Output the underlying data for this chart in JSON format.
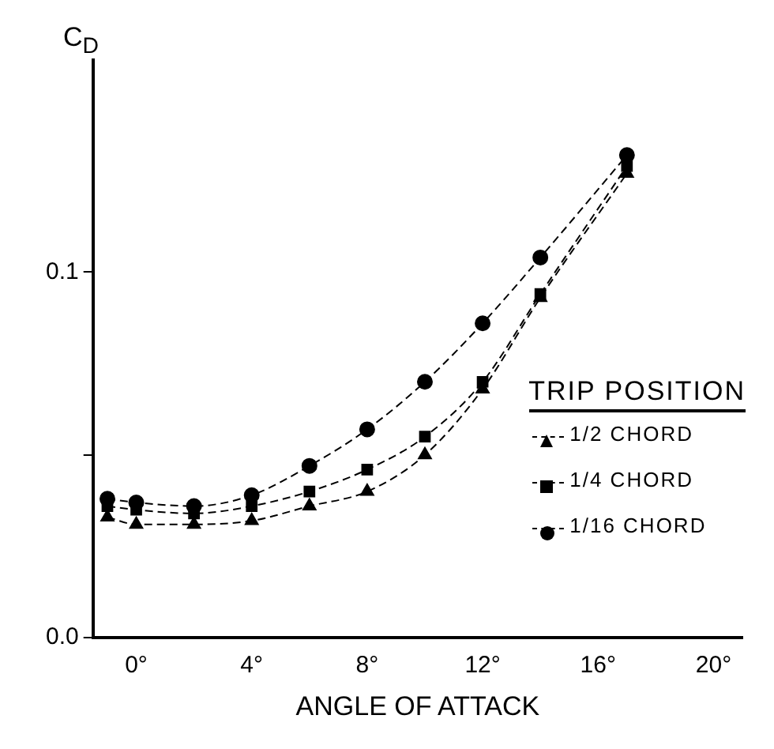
{
  "chart_data": {
    "type": "line",
    "xlabel": "ANGLE OF ATTACK",
    "ylabel": "C$_{D}$",
    "legend_title": "TRIP POSITION",
    "x": [
      -1,
      0,
      2,
      4,
      6,
      8,
      10,
      12,
      14,
      17
    ],
    "series": [
      {
        "name": "1/2 CHORD",
        "color": "#000000",
        "marker": "triangle",
        "values": [
          0.033,
          0.031,
          0.031,
          0.032,
          0.036,
          0.04,
          0.05,
          0.068,
          0.093,
          0.127
        ]
      },
      {
        "name": "1/4 CHORD",
        "color": "#000000",
        "marker": "square",
        "values": [
          0.036,
          0.035,
          0.034,
          0.036,
          0.04,
          0.046,
          0.055,
          0.07,
          0.094,
          0.129
        ]
      },
      {
        "name": "1/16 CHORD",
        "color": "#000000",
        "marker": "circle",
        "values": [
          0.038,
          0.037,
          0.036,
          0.039,
          0.047,
          0.057,
          0.07,
          0.086,
          0.104,
          0.132
        ]
      }
    ],
    "xlim": [
      -1.5,
      21
    ],
    "xticks": [
      {
        "value": 0,
        "label": "0°"
      },
      {
        "value": 4,
        "label": "4°"
      },
      {
        "value": 8,
        "label": "8°"
      },
      {
        "value": 12,
        "label": "12°"
      },
      {
        "value": 16,
        "label": "16°"
      },
      {
        "value": 20,
        "label": "20°"
      }
    ],
    "ylim": [
      0,
      0.158
    ],
    "yticks": [
      {
        "value": 0,
        "label": "0.0"
      },
      {
        "value": 0.05,
        "label": null
      },
      {
        "value": 0.1,
        "label": "0.1"
      }
    ],
    "grid": false,
    "legend": "right",
    "line_style": "dashed"
  }
}
